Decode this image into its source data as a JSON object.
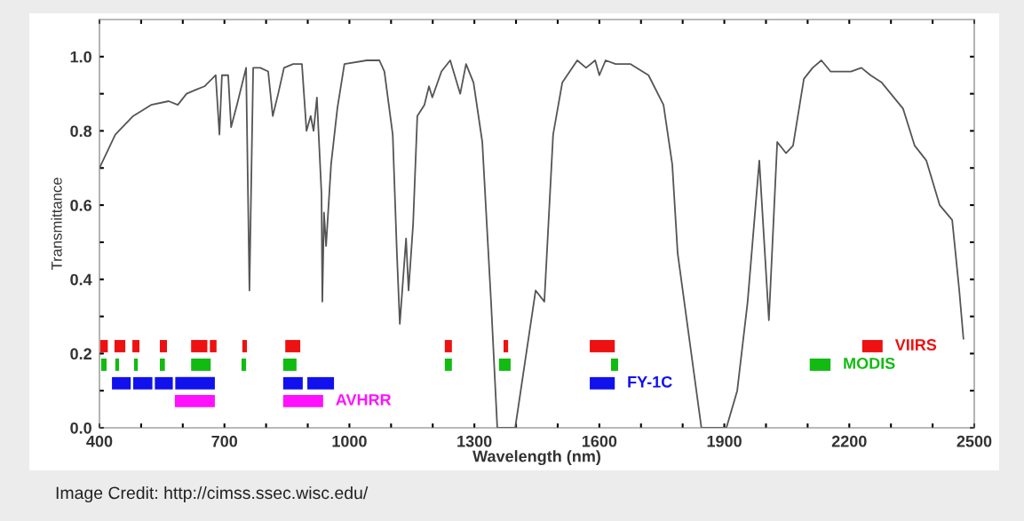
{
  "chart_data": {
    "type": "line",
    "xlabel": "Wavelength (nm)",
    "ylabel": "Transmittance",
    "xlim": [
      400,
      2500
    ],
    "ylim": [
      0,
      1.1
    ],
    "xticks": [
      400,
      {
        "value": 500,
        "label": null
      },
      {
        "value": 600,
        "label": null
      },
      700,
      {
        "value": 800,
        "label": null
      },
      {
        "value": 900,
        "label": null
      },
      1000,
      {
        "value": 1100,
        "label": null
      },
      {
        "value": 1200,
        "label": null
      },
      1300,
      {
        "value": 1400,
        "label": null
      },
      {
        "value": 1500,
        "label": null
      },
      1600,
      {
        "value": 1700,
        "label": null
      },
      {
        "value": 1800,
        "label": null
      },
      1900,
      {
        "value": 2000,
        "label": null
      },
      {
        "value": 2100,
        "label": null
      },
      2200,
      {
        "value": 2300,
        "label": null
      },
      {
        "value": 2400,
        "label": null
      },
      2500
    ],
    "yticks": [
      {
        "value": 0,
        "label": "0.0"
      },
      {
        "value": 0.1,
        "label": null
      },
      0.2,
      {
        "value": 0.3,
        "label": null
      },
      0.4,
      {
        "value": 0.5,
        "label": null
      },
      0.6,
      {
        "value": 0.7,
        "label": null
      },
      0.8,
      {
        "value": 0.9,
        "label": null
      },
      {
        "value": 1.0,
        "label": "1.0"
      }
    ],
    "grid": false,
    "legend": false,
    "marker": "none",
    "line_style": "solid",
    "series": [
      {
        "color": "#555555",
        "x": [
          400,
          438,
          481,
          524,
          566,
          588,
          609,
          630,
          652,
          679,
          688,
          694,
          709,
          716,
          730,
          752,
          760,
          769,
          786,
          805,
          816,
          829,
          843,
          865,
          886,
          897,
          907,
          914,
          922,
          933,
          935,
          939,
          944,
          956,
          971,
          988,
          1042,
          1057,
          1072,
          1084,
          1104,
          1114,
          1121,
          1136,
          1142,
          1153,
          1163,
          1180,
          1191,
          1199,
          1221,
          1242,
          1266,
          1280,
          1298,
          1319,
          1340,
          1355,
          1398,
          1447,
          1468,
          1489,
          1511,
          1547,
          1568,
          1590,
          1600,
          1615,
          1639,
          1675,
          1718,
          1754,
          1775,
          1788,
          1845,
          1905,
          1931,
          1956,
          1984,
          2007,
          2027,
          2048,
          2065,
          2091,
          2112,
          2133,
          2155,
          2180,
          2204,
          2229,
          2251,
          2278,
          2329,
          2357,
          2385,
          2417,
          2447,
          2464,
          2474
        ],
        "values": [
          0.7,
          0.79,
          0.84,
          0.87,
          0.88,
          0.87,
          0.9,
          0.91,
          0.92,
          0.95,
          0.79,
          0.95,
          0.95,
          0.81,
          0.87,
          0.97,
          0.37,
          0.97,
          0.97,
          0.96,
          0.84,
          0.9,
          0.97,
          0.98,
          0.98,
          0.8,
          0.84,
          0.8,
          0.89,
          0.63,
          0.34,
          0.58,
          0.49,
          0.71,
          0.86,
          0.98,
          0.99,
          0.99,
          0.99,
          0.96,
          0.79,
          0.47,
          0.28,
          0.51,
          0.37,
          0.55,
          0.84,
          0.87,
          0.92,
          0.89,
          0.96,
          0.99,
          0.9,
          0.98,
          0.93,
          0.77,
          0.34,
          0.0,
          0.0,
          0.37,
          0.34,
          0.79,
          0.93,
          0.99,
          0.97,
          0.99,
          0.95,
          0.99,
          0.98,
          0.98,
          0.95,
          0.87,
          0.71,
          0.47,
          0.0,
          0.0,
          0.1,
          0.34,
          0.72,
          0.29,
          0.77,
          0.74,
          0.76,
          0.94,
          0.97,
          0.99,
          0.96,
          0.96,
          0.96,
          0.97,
          0.95,
          0.93,
          0.86,
          0.76,
          0.72,
          0.6,
          0.56,
          0.37,
          0.24
        ]
      },
      {
        "color": "#ee1111",
        "x": [
          402,
          420
        ],
        "values": [
          0.22,
          0.22
        ]
      },
      {
        "color": "#ee1111",
        "x": [
          436,
          462
        ],
        "values": [
          0.22,
          0.22
        ]
      },
      {
        "color": "#ee1111",
        "x": [
          479,
          496
        ],
        "values": [
          0.22,
          0.22
        ]
      },
      {
        "color": "#ee1111",
        "x": [
          545,
          562
        ],
        "values": [
          0.22,
          0.22
        ]
      },
      {
        "color": "#ee1111",
        "x": [
          620,
          659
        ],
        "values": [
          0.22,
          0.22
        ]
      },
      {
        "color": "#ee1111",
        "x": [
          665,
          681
        ],
        "values": [
          0.22,
          0.22
        ]
      },
      {
        "color": "#ee1111",
        "x": [
          743,
          754
        ],
        "values": [
          0.22,
          0.22
        ]
      },
      {
        "color": "#ee1111",
        "x": [
          846,
          882
        ],
        "values": [
          0.22,
          0.22
        ]
      },
      {
        "color": "#ee1111",
        "x": [
          1229,
          1246
        ],
        "values": [
          0.22,
          0.22
        ]
      },
      {
        "color": "#ee1111",
        "x": [
          1370,
          1381
        ],
        "values": [
          0.22,
          0.22
        ]
      },
      {
        "color": "#ee1111",
        "x": [
          1577,
          1637
        ],
        "values": [
          0.22,
          0.22
        ]
      },
      {
        "name": "VIIRS",
        "color": "#ee1111",
        "x": [
          2231,
          2280
        ],
        "values": [
          0.22,
          0.22
        ]
      },
      {
        "color": "#11bb11",
        "x": [
          404,
          417
        ],
        "values": [
          0.17,
          0.17
        ]
      },
      {
        "color": "#11bb11",
        "x": [
          438,
          447
        ],
        "values": [
          0.17,
          0.17
        ]
      },
      {
        "color": "#11bb11",
        "x": [
          483,
          492
        ],
        "values": [
          0.17,
          0.17
        ]
      },
      {
        "color": "#11bb11",
        "x": [
          545,
          557
        ],
        "values": [
          0.17,
          0.17
        ]
      },
      {
        "color": "#11bb11",
        "x": [
          620,
          667
        ],
        "values": [
          0.17,
          0.17
        ]
      },
      {
        "color": "#11bb11",
        "x": [
          741,
          752
        ],
        "values": [
          0.17,
          0.17
        ]
      },
      {
        "color": "#11bb11",
        "x": [
          841,
          873
        ],
        "values": [
          0.17,
          0.17
        ]
      },
      {
        "color": "#11bb11",
        "x": [
          1229,
          1246
        ],
        "values": [
          0.17,
          0.17
        ]
      },
      {
        "color": "#11bb11",
        "x": [
          1359,
          1387
        ],
        "values": [
          0.17,
          0.17
        ]
      },
      {
        "color": "#11bb11",
        "x": [
          1628,
          1645
        ],
        "values": [
          0.17,
          0.17
        ]
      },
      {
        "name": "MODIS",
        "color": "#11bb11",
        "x": [
          2105,
          2155
        ],
        "values": [
          0.17,
          0.17
        ]
      },
      {
        "color": "#1111ee",
        "x": [
          430,
          475
        ],
        "values": [
          0.12,
          0.12
        ]
      },
      {
        "color": "#1111ee",
        "x": [
          481,
          527
        ],
        "values": [
          0.12,
          0.12
        ]
      },
      {
        "color": "#1111ee",
        "x": [
          533,
          576
        ],
        "values": [
          0.12,
          0.12
        ]
      },
      {
        "color": "#1111ee",
        "x": [
          582,
          677
        ],
        "values": [
          0.12,
          0.12
        ]
      },
      {
        "color": "#1111ee",
        "x": [
          841,
          888
        ],
        "values": [
          0.12,
          0.12
        ]
      },
      {
        "color": "#1111ee",
        "x": [
          899,
          963
        ],
        "values": [
          0.12,
          0.12
        ]
      },
      {
        "name": "FY-1C",
        "color": "#1111ee",
        "x": [
          1577,
          1637
        ],
        "values": [
          0.12,
          0.12
        ]
      },
      {
        "color": "#ff11ff",
        "x": [
          581,
          677
        ],
        "values": [
          0.072,
          0.072
        ]
      },
      {
        "name": "AVHRR",
        "color": "#ff11ff",
        "x": [
          841,
          937
        ],
        "values": [
          0.072,
          0.072
        ]
      }
    ],
    "annotations": [
      "Image Credit: http://cimss.ssec.wisc.edu/"
    ]
  }
}
